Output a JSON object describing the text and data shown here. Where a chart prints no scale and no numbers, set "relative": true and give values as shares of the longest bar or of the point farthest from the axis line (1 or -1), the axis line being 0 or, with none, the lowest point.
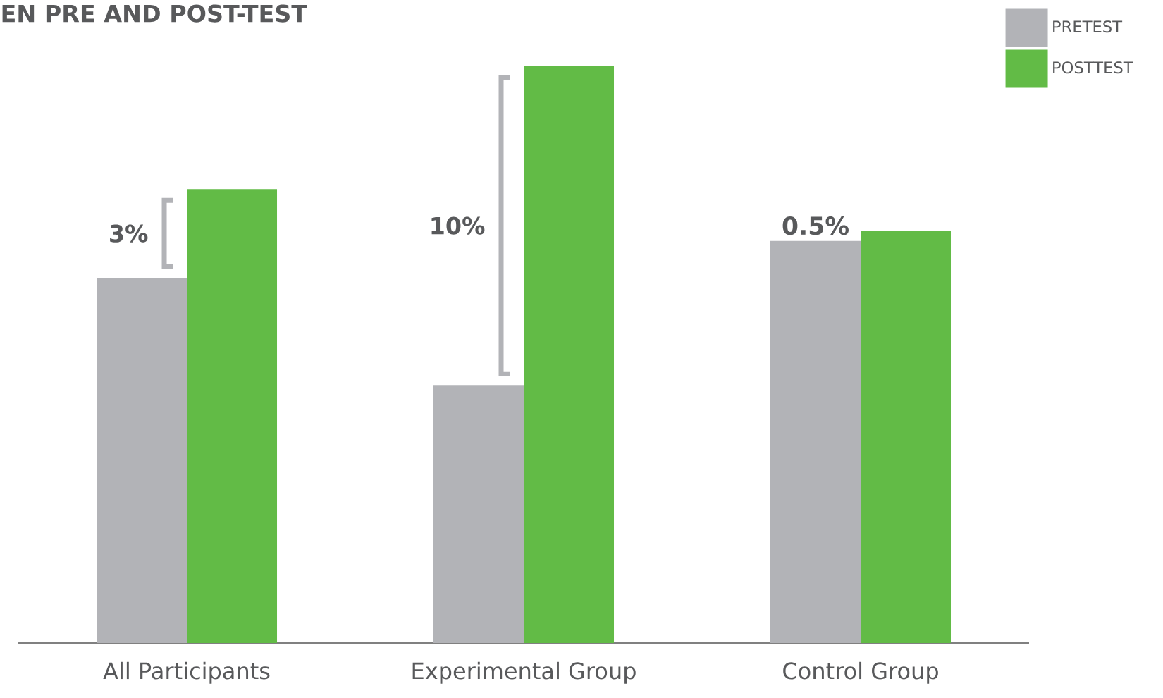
{
  "chart_data": {
    "type": "bar",
    "title": "EN PRE AND POST-TEST",
    "categories": [
      "All Participants",
      "Experimental Group",
      "Control Group"
    ],
    "relative": true,
    "series": [
      {
        "name": "PRETEST",
        "color": "#b2b3b7",
        "values": [
          0.633,
          0.447,
          0.697
        ]
      },
      {
        "name": "POSTTEST",
        "color": "#62bb46",
        "values": [
          0.787,
          1,
          0.714
        ]
      }
    ],
    "annotations": [
      "3%",
      "10%",
      "0.5%"
    ],
    "legend": "top right"
  }
}
